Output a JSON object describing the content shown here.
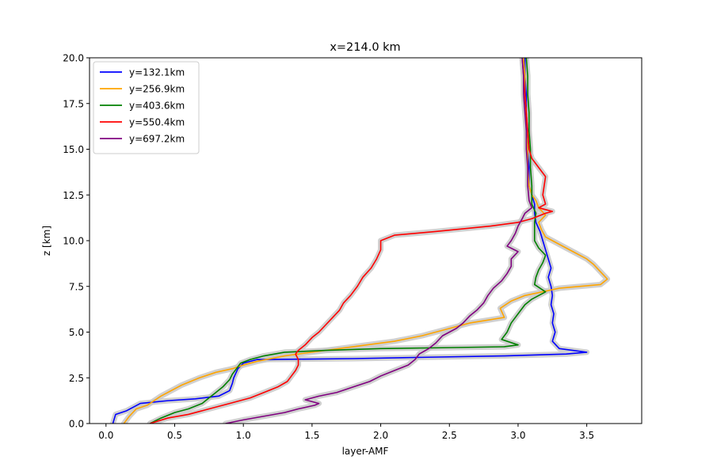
{
  "chart_data": {
    "type": "line",
    "title": "x=214.0 km",
    "xlabel": "layer-AMF",
    "ylabel": "z [km]",
    "xlim": [
      -0.12,
      3.9
    ],
    "ylim": [
      0,
      20
    ],
    "xticks": [
      0.0,
      0.5,
      1.0,
      1.5,
      2.0,
      2.5,
      3.0,
      3.5
    ],
    "xtick_labels": [
      "0.0",
      "0.5",
      "1.0",
      "1.5",
      "2.0",
      "2.5",
      "3.0",
      "3.5"
    ],
    "yticks": [
      0.0,
      2.5,
      5.0,
      7.5,
      10.0,
      12.5,
      15.0,
      17.5,
      20.0
    ],
    "ytick_labels": [
      "0.0",
      "2.5",
      "5.0",
      "7.5",
      "10.0",
      "12.5",
      "15.0",
      "17.5",
      "20.0"
    ],
    "grid": false,
    "legend_position": "top-left",
    "uncertainty_band_color": "#c8c8c8",
    "series": [
      {
        "name": "y=132.1km",
        "color": "#0000ff",
        "points": [
          [
            0.05,
            0
          ],
          [
            0.07,
            0.5
          ],
          [
            0.15,
            0.7
          ],
          [
            0.25,
            1.1
          ],
          [
            0.45,
            1.25
          ],
          [
            0.65,
            1.35
          ],
          [
            0.82,
            1.5
          ],
          [
            0.9,
            1.8
          ],
          [
            0.92,
            2.2
          ],
          [
            0.93,
            2.5
          ],
          [
            0.96,
            3.0
          ],
          [
            1.0,
            3.3
          ],
          [
            1.1,
            3.5
          ],
          [
            1.4,
            3.52
          ],
          [
            1.8,
            3.55
          ],
          [
            2.3,
            3.62
          ],
          [
            2.9,
            3.7
          ],
          [
            3.35,
            3.8
          ],
          [
            3.5,
            3.9
          ],
          [
            3.3,
            4.1
          ],
          [
            3.25,
            4.5
          ],
          [
            3.27,
            5.0
          ],
          [
            3.25,
            5.5
          ],
          [
            3.26,
            6.0
          ],
          [
            3.24,
            6.5
          ],
          [
            3.25,
            7.0
          ],
          [
            3.24,
            7.5
          ],
          [
            3.22,
            8.0
          ],
          [
            3.24,
            8.5
          ],
          [
            3.22,
            9.0
          ],
          [
            3.2,
            9.5
          ],
          [
            3.18,
            10.0
          ],
          [
            3.16,
            10.5
          ],
          [
            3.13,
            11.0
          ],
          [
            3.12,
            11.5
          ],
          [
            3.12,
            12.0
          ],
          [
            3.1,
            12.5
          ],
          [
            3.08,
            13.0
          ],
          [
            3.08,
            14.0
          ],
          [
            3.07,
            15.0
          ],
          [
            3.07,
            16.0
          ],
          [
            3.06,
            17.0
          ],
          [
            3.06,
            18.0
          ],
          [
            3.05,
            19.0
          ],
          [
            3.05,
            20.0
          ]
        ]
      },
      {
        "name": "y=256.9km",
        "color": "#ffa500",
        "points": [
          [
            0.13,
            0
          ],
          [
            0.17,
            0.4
          ],
          [
            0.22,
            0.8
          ],
          [
            0.3,
            1.0
          ],
          [
            0.4,
            1.5
          ],
          [
            0.55,
            2.1
          ],
          [
            0.68,
            2.5
          ],
          [
            0.8,
            2.8
          ],
          [
            0.92,
            3.0
          ],
          [
            1.0,
            3.2
          ],
          [
            1.1,
            3.4
          ],
          [
            1.3,
            3.7
          ],
          [
            1.55,
            3.95
          ],
          [
            1.8,
            4.2
          ],
          [
            2.1,
            4.5
          ],
          [
            2.3,
            4.8
          ],
          [
            2.5,
            5.2
          ],
          [
            2.65,
            5.5
          ],
          [
            2.9,
            5.8
          ],
          [
            2.87,
            6.3
          ],
          [
            2.95,
            6.7
          ],
          [
            3.05,
            7.0
          ],
          [
            3.3,
            7.4
          ],
          [
            3.6,
            7.6
          ],
          [
            3.65,
            7.9
          ],
          [
            3.6,
            8.3
          ],
          [
            3.55,
            8.7
          ],
          [
            3.5,
            9.0
          ],
          [
            3.4,
            9.4
          ],
          [
            3.3,
            9.8
          ],
          [
            3.2,
            10.2
          ],
          [
            3.17,
            10.6
          ],
          [
            3.15,
            11.0
          ],
          [
            3.2,
            11.4
          ],
          [
            3.15,
            11.8
          ],
          [
            3.13,
            12.2
          ],
          [
            3.1,
            12.5
          ],
          [
            3.08,
            13.0
          ],
          [
            3.07,
            14.0
          ],
          [
            3.07,
            15.0
          ],
          [
            3.06,
            16.0
          ],
          [
            3.06,
            17.0
          ],
          [
            3.05,
            18.0
          ],
          [
            3.05,
            19.0
          ],
          [
            3.04,
            20.0
          ]
        ]
      },
      {
        "name": "y=403.6km",
        "color": "#008000",
        "points": [
          [
            0.32,
            0
          ],
          [
            0.4,
            0.3
          ],
          [
            0.5,
            0.6
          ],
          [
            0.6,
            0.8
          ],
          [
            0.7,
            1.1
          ],
          [
            0.75,
            1.4
          ],
          [
            0.8,
            1.7
          ],
          [
            0.85,
            2.0
          ],
          [
            0.9,
            2.4
          ],
          [
            0.92,
            2.7
          ],
          [
            0.95,
            3.0
          ],
          [
            0.98,
            3.3
          ],
          [
            1.05,
            3.5
          ],
          [
            1.15,
            3.7
          ],
          [
            1.3,
            3.9
          ],
          [
            1.6,
            4.0
          ],
          [
            2.0,
            4.1
          ],
          [
            2.5,
            4.15
          ],
          [
            2.9,
            4.2
          ],
          [
            3.0,
            4.3
          ],
          [
            2.88,
            4.6
          ],
          [
            2.92,
            5.0
          ],
          [
            2.95,
            5.5
          ],
          [
            3.0,
            6.0
          ],
          [
            3.05,
            6.5
          ],
          [
            3.1,
            6.8
          ],
          [
            3.2,
            7.2
          ],
          [
            3.12,
            7.6
          ],
          [
            3.13,
            8.0
          ],
          [
            3.15,
            8.4
          ],
          [
            3.18,
            8.8
          ],
          [
            3.2,
            9.2
          ],
          [
            3.15,
            9.6
          ],
          [
            3.12,
            10.0
          ],
          [
            3.12,
            10.5
          ],
          [
            3.12,
            11.0
          ],
          [
            3.13,
            11.5
          ],
          [
            3.1,
            12.0
          ],
          [
            3.1,
            12.5
          ],
          [
            3.1,
            13.0
          ],
          [
            3.09,
            14.0
          ],
          [
            3.09,
            15.0
          ],
          [
            3.08,
            16.0
          ],
          [
            3.08,
            17.0
          ],
          [
            3.07,
            18.0
          ],
          [
            3.07,
            19.0
          ],
          [
            3.06,
            20.0
          ]
        ]
      },
      {
        "name": "y=550.4km",
        "color": "#ff0000",
        "points": [
          [
            0.32,
            0
          ],
          [
            0.45,
            0.3
          ],
          [
            0.6,
            0.5
          ],
          [
            0.75,
            0.8
          ],
          [
            0.9,
            1.1
          ],
          [
            1.05,
            1.4
          ],
          [
            1.15,
            1.7
          ],
          [
            1.25,
            2.0
          ],
          [
            1.32,
            2.3
          ],
          [
            1.35,
            2.6
          ],
          [
            1.38,
            2.9
          ],
          [
            1.4,
            3.2
          ],
          [
            1.4,
            3.5
          ],
          [
            1.38,
            3.8
          ],
          [
            1.4,
            4.0
          ],
          [
            1.45,
            4.3
          ],
          [
            1.5,
            4.7
          ],
          [
            1.55,
            5.0
          ],
          [
            1.6,
            5.4
          ],
          [
            1.65,
            5.8
          ],
          [
            1.7,
            6.2
          ],
          [
            1.73,
            6.6
          ],
          [
            1.78,
            7.0
          ],
          [
            1.83,
            7.5
          ],
          [
            1.87,
            8.0
          ],
          [
            1.93,
            8.5
          ],
          [
            1.97,
            9.0
          ],
          [
            2.0,
            9.5
          ],
          [
            2.0,
            10.0
          ],
          [
            2.1,
            10.3
          ],
          [
            2.4,
            10.5
          ],
          [
            2.8,
            10.8
          ],
          [
            3.0,
            11.0
          ],
          [
            3.1,
            11.2
          ],
          [
            3.2,
            11.5
          ],
          [
            3.25,
            11.6
          ],
          [
            3.15,
            11.8
          ],
          [
            3.2,
            12.0
          ],
          [
            3.18,
            12.5
          ],
          [
            3.2,
            13.5
          ],
          [
            3.15,
            14.0
          ],
          [
            3.1,
            14.5
          ],
          [
            3.08,
            15.0
          ],
          [
            3.07,
            16.0
          ],
          [
            3.06,
            17.0
          ],
          [
            3.05,
            18.0
          ],
          [
            3.04,
            19.0
          ],
          [
            3.03,
            20.0
          ]
        ]
      },
      {
        "name": "y=697.2km",
        "color": "#800080",
        "points": [
          [
            0.87,
            0
          ],
          [
            1.0,
            0.2
          ],
          [
            1.15,
            0.4
          ],
          [
            1.3,
            0.6
          ],
          [
            1.4,
            0.8
          ],
          [
            1.52,
            1.0
          ],
          [
            1.55,
            1.1
          ],
          [
            1.45,
            1.3
          ],
          [
            1.55,
            1.5
          ],
          [
            1.68,
            1.7
          ],
          [
            1.8,
            2.0
          ],
          [
            1.92,
            2.3
          ],
          [
            2.0,
            2.6
          ],
          [
            2.1,
            2.9
          ],
          [
            2.2,
            3.2
          ],
          [
            2.25,
            3.5
          ],
          [
            2.28,
            3.8
          ],
          [
            2.35,
            4.1
          ],
          [
            2.4,
            4.4
          ],
          [
            2.45,
            4.8
          ],
          [
            2.55,
            5.2
          ],
          [
            2.6,
            5.5
          ],
          [
            2.65,
            5.9
          ],
          [
            2.7,
            6.2
          ],
          [
            2.75,
            6.6
          ],
          [
            2.78,
            7.0
          ],
          [
            2.82,
            7.4
          ],
          [
            2.88,
            7.8
          ],
          [
            2.92,
            8.2
          ],
          [
            2.95,
            8.6
          ],
          [
            2.95,
            9.0
          ],
          [
            3.0,
            9.4
          ],
          [
            2.92,
            9.7
          ],
          [
            2.95,
            10.0
          ],
          [
            2.98,
            10.4
          ],
          [
            3.0,
            10.8
          ],
          [
            3.03,
            11.2
          ],
          [
            3.05,
            11.5
          ],
          [
            3.1,
            11.8
          ],
          [
            3.08,
            12.2
          ],
          [
            3.07,
            13.0
          ],
          [
            3.07,
            14.0
          ],
          [
            3.06,
            15.0
          ],
          [
            3.06,
            16.0
          ],
          [
            3.05,
            17.0
          ],
          [
            3.04,
            18.0
          ],
          [
            3.04,
            19.0
          ],
          [
            3.03,
            20.0
          ]
        ]
      }
    ]
  }
}
